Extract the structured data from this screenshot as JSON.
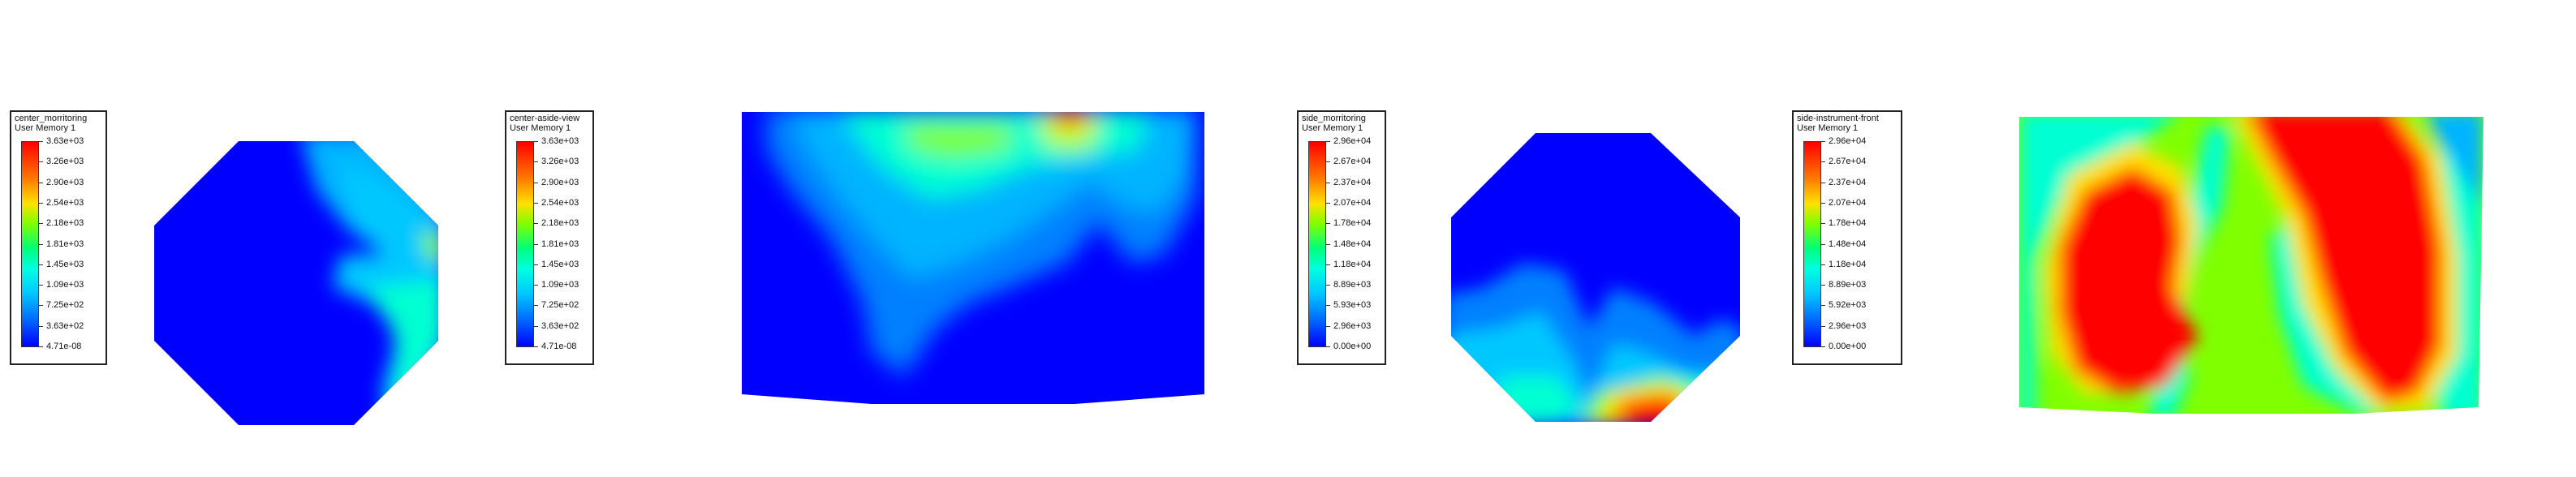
{
  "legends": [
    {
      "id": "center_morritoring",
      "title": "center_morritoring",
      "subtitle": "User Memory 1",
      "labels": [
        "3.63e+03",
        "3.26e+03",
        "2.90e+03",
        "2.54e+03",
        "2.18e+03",
        "1.81e+03",
        "1.45e+03",
        "1.09e+03",
        "7.25e+02",
        "3.63e+02",
        "4.71e-08"
      ]
    },
    {
      "id": "center-aside-view",
      "title": "center-aside-view",
      "subtitle": "User Memory 1",
      "labels": [
        "3.63e+03",
        "3.26e+03",
        "2.90e+03",
        "2.54e+03",
        "2.18e+03",
        "1.81e+03",
        "1.45e+03",
        "1.09e+03",
        "7.25e+02",
        "3.63e+02",
        "4.71e-08"
      ]
    },
    {
      "id": "side_morritoring",
      "title": "side_morritoring",
      "subtitle": "User Memory 1",
      "labels": [
        "2.96e+04",
        "2.67e+04",
        "2.37e+04",
        "2.07e+04",
        "1.78e+04",
        "1.48e+04",
        "1.18e+04",
        "8.89e+03",
        "5.93e+03",
        "2.96e+03",
        "0.00e+00"
      ]
    },
    {
      "id": "side-instrument-front",
      "title": "side-instrument-front",
      "subtitle": "User Memory 1",
      "labels": [
        "2.96e+04",
        "2.67e+04",
        "2.37e+04",
        "2.07e+04",
        "1.78e+04",
        "1.48e+04",
        "1.18e+04",
        "8.89e+03",
        "5.92e+03",
        "2.96e+03",
        "0.00e+00"
      ]
    }
  ],
  "colormap": [
    "#0000ff",
    "#00b4ff",
    "#00ffd2",
    "#7fff00",
    "#ffe000",
    "#ff7a00",
    "#ff0000"
  ]
}
